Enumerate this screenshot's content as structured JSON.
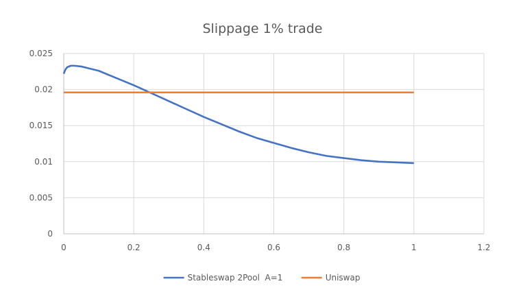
{
  "chart_data": {
    "type": "line",
    "title": "Slippage 1% trade",
    "xlabel": "",
    "ylabel": "",
    "xlim": [
      0,
      1.2
    ],
    "ylim": [
      0,
      0.025
    ],
    "x_ticks": [
      "0",
      "0.2",
      "0.4",
      "0.6",
      "0.8",
      "1",
      "1.2"
    ],
    "y_ticks": [
      "0",
      "0.005",
      "0.01",
      "0.015",
      "0.02",
      "0.025"
    ],
    "grid": true,
    "legend_position": "bottom",
    "series": [
      {
        "name": "Stableswap 2Pool  A=1",
        "color": "#4472c4",
        "x": [
          0,
          0.005,
          0.01,
          0.02,
          0.03,
          0.05,
          0.1,
          0.15,
          0.2,
          0.25,
          0.3,
          0.35,
          0.4,
          0.45,
          0.5,
          0.55,
          0.6,
          0.65,
          0.7,
          0.75,
          0.8,
          0.85,
          0.9,
          0.95,
          1.0
        ],
        "y": [
          0.0222,
          0.0228,
          0.0231,
          0.0233,
          0.0233,
          0.0232,
          0.0226,
          0.0216,
          0.0206,
          0.0195,
          0.0184,
          0.0173,
          0.0162,
          0.0152,
          0.0142,
          0.0133,
          0.0126,
          0.0119,
          0.0113,
          0.0108,
          0.0105,
          0.0102,
          0.01,
          0.0099,
          0.0098
        ]
      },
      {
        "name": "Uniswap",
        "color": "#ed7d31",
        "x": [
          0,
          1.0
        ],
        "y": [
          0.0196,
          0.0196
        ]
      }
    ]
  }
}
